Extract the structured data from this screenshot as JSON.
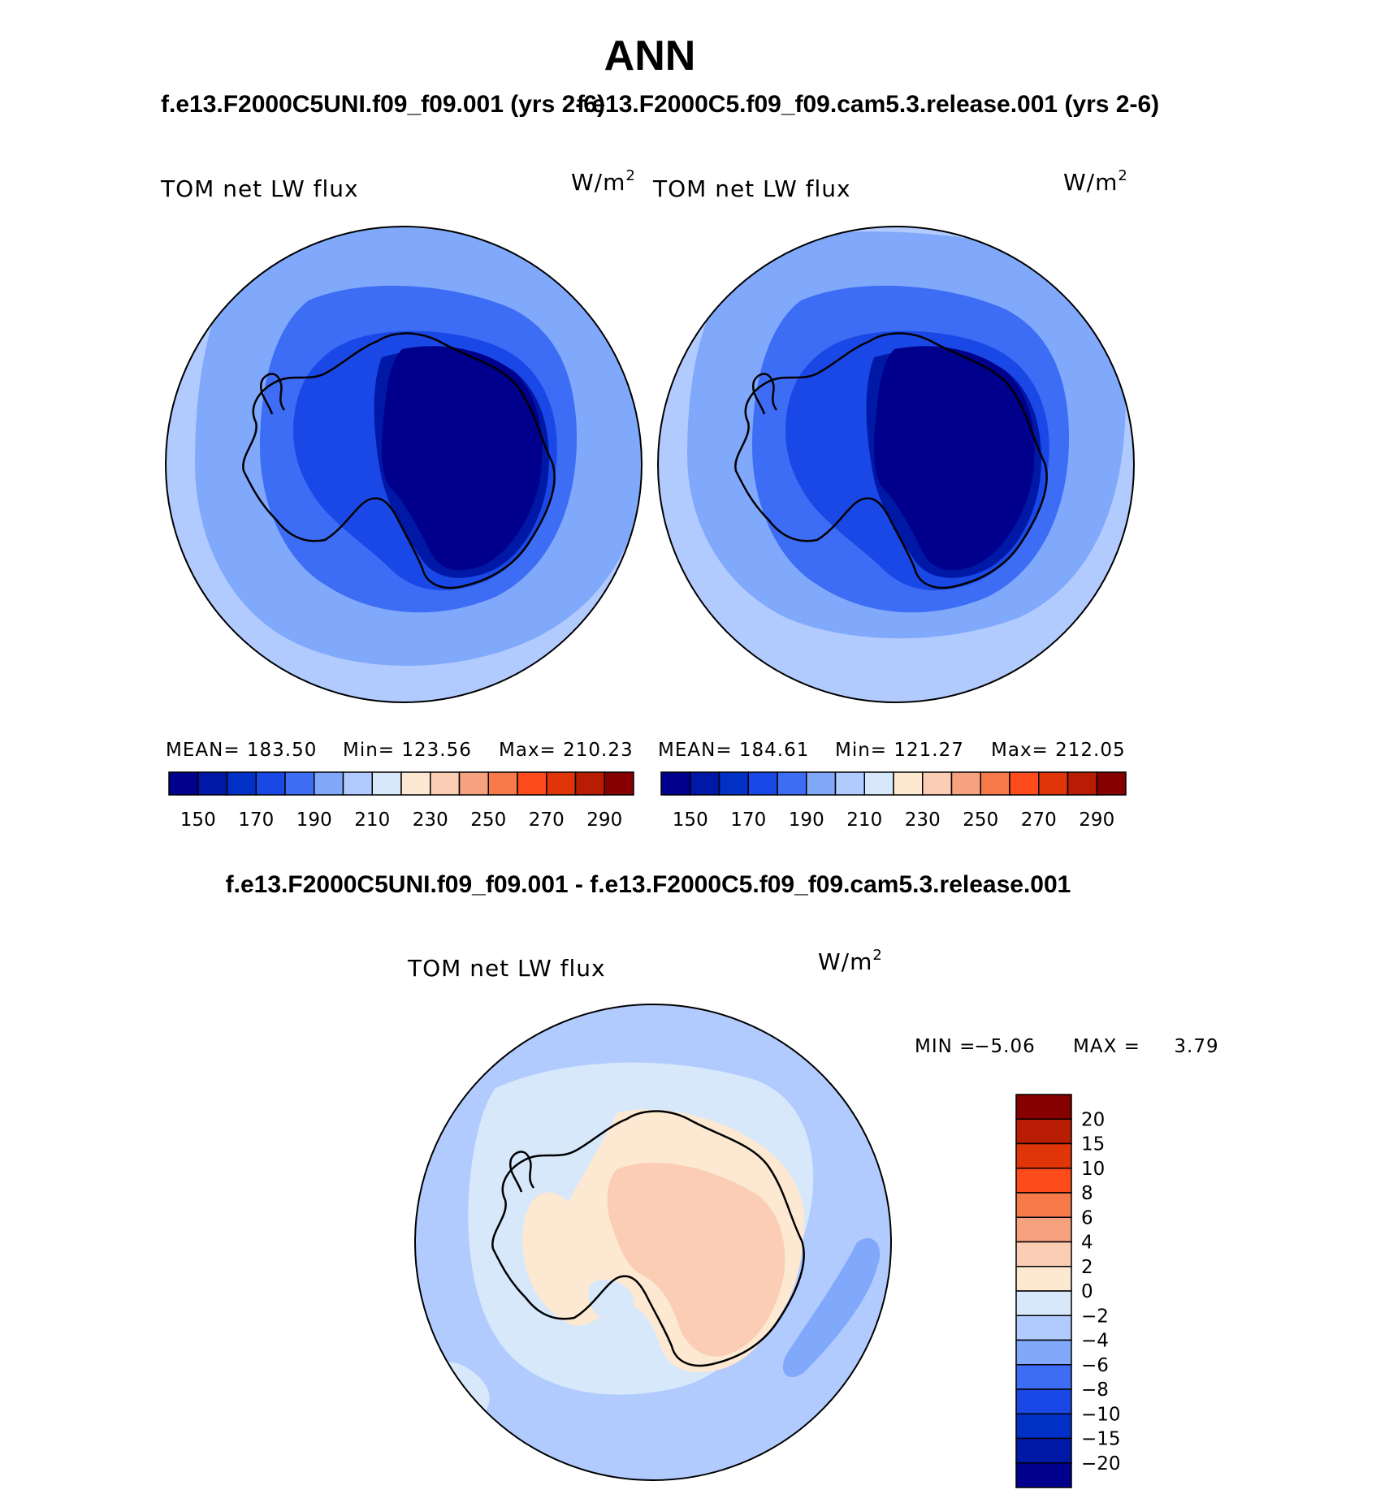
{
  "chart_data": [
    {
      "type": "heatmap",
      "projection": "south-polar-stereographic",
      "season": "ANN",
      "case": "f.e13.F2000C5UNI.f09_f09.001 (yrs 2-6)",
      "case_title_shown": "f.e13.F2000C5UNI.f09_f09.001 (yrs 2-6)",
      "variable": "TOM net LW flux",
      "units": "W/m2",
      "stats": {
        "mean_label": "MEAN= 183.50",
        "min_label": "Min= 123.56",
        "max_label": "Max= 210.23"
      },
      "levels": [
        140,
        150,
        160,
        170,
        180,
        190,
        200,
        210,
        220,
        230,
        240,
        250,
        260,
        270,
        280,
        290
      ],
      "tick_labels": [
        "150",
        "170",
        "190",
        "210",
        "230",
        "250",
        "270",
        "290"
      ]
    },
    {
      "type": "heatmap",
      "projection": "south-polar-stereographic",
      "season": "ANN",
      "case": "f.e13.F2000C5.f09_f09.cam5.3.release.001 (yrs 2-6)",
      "case_title_shown": "f.e13.F2000C5.f09_f09.cam5.3.release.001 (yrs 2-6)",
      "variable": "TOM net LW flux",
      "units": "W/m2",
      "stats": {
        "mean_label": "MEAN= 184.61",
        "min_label": "Min= 121.27",
        "max_label": "Max= 212.05"
      },
      "levels": [
        140,
        150,
        160,
        170,
        180,
        190,
        200,
        210,
        220,
        230,
        240,
        250,
        260,
        270,
        280,
        290
      ],
      "tick_labels": [
        "150",
        "170",
        "190",
        "210",
        "230",
        "250",
        "270",
        "290"
      ]
    },
    {
      "type": "heatmap",
      "projection": "south-polar-stereographic",
      "title": "f.e13.F2000C5UNI.f09_f09.001 - f.e13.F2000C5.f09_f09.cam5.3.release.001",
      "variable": "TOM net LW flux",
      "units": "W/m2",
      "stats": {
        "min_label": "MIN =",
        "min_value": "−5.06",
        "max_label": "MAX =",
        "max_value": "3.79"
      },
      "levels": [
        -20,
        -15,
        -10,
        -8,
        -6,
        -4,
        -2,
        0,
        2,
        4,
        6,
        8,
        10,
        15,
        20
      ],
      "tick_labels": [
        "20",
        "15",
        "10",
        "8",
        "6",
        "4",
        "2",
        "0",
        "−2",
        "−4",
        "−6",
        "−8",
        "−10",
        "−15",
        "−20"
      ]
    }
  ],
  "page": {
    "title": "ANN",
    "units_base": "W/m",
    "units_sup": "2"
  },
  "colors": {
    "scale16": [
      "#00008c",
      "#0018a6",
      "#0030c6",
      "#1a48e6",
      "#3d6cf5",
      "#80a8fb",
      "#b2cbff",
      "#d6e8fa",
      "#fde8d2",
      "#fbcdb4",
      "#f7a27f",
      "#f77b4a",
      "#fd4b1c",
      "#e03508",
      "#b81c03",
      "#870000"
    ],
    "scale_diff": [
      "#00008c",
      "#0018a6",
      "#0030c6",
      "#1a48e6",
      "#3d6cf5",
      "#80a8fb",
      "#b2cbff",
      "#d6e8fa",
      "#fde8d2",
      "#fbcdb4",
      "#f7a27f",
      "#f77b4a",
      "#fd4b1c",
      "#e03508",
      "#b81c03",
      "#870000"
    ]
  }
}
